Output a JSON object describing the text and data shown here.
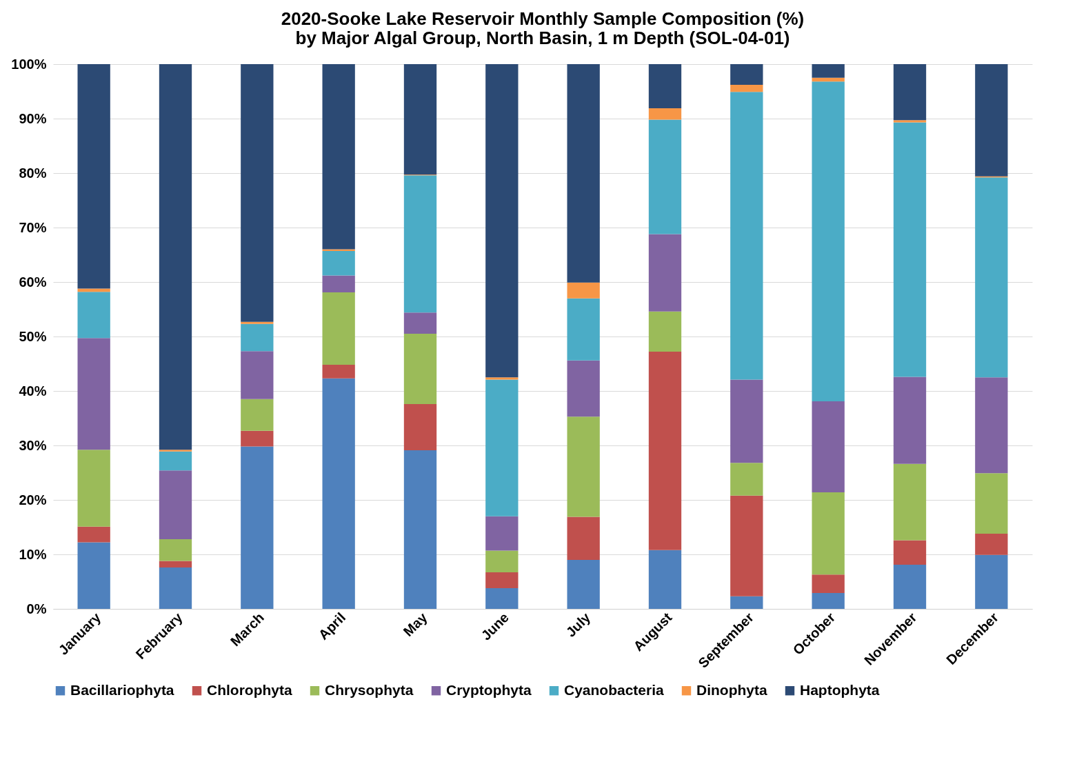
{
  "chart_data": {
    "type": "bar",
    "title": "2020-Sooke Lake Reservoir Monthly Sample Composition (%)\nby Major Algal Group, North Basin, 1 m Depth (SOL-04-01)",
    "categories": [
      "January",
      "February",
      "March",
      "April",
      "May",
      "June",
      "July",
      "August",
      "September",
      "October",
      "November",
      "December"
    ],
    "stacked": true,
    "series": [
      {
        "name": "Bacillariophyta",
        "color": "#4f81bd",
        "values": [
          12.2,
          7.6,
          29.8,
          42.3,
          29.1,
          3.8,
          9.0,
          10.8,
          2.3,
          2.9,
          8.1,
          9.9
        ]
      },
      {
        "name": "Chlorophyta",
        "color": "#c0504d",
        "values": [
          2.9,
          1.2,
          2.9,
          2.5,
          8.5,
          2.9,
          7.9,
          36.4,
          18.5,
          3.4,
          4.5,
          3.9
        ]
      },
      {
        "name": "Chrysophyta",
        "color": "#9bbb59",
        "values": [
          14.1,
          4.0,
          5.8,
          13.3,
          12.9,
          4.0,
          18.4,
          7.4,
          6.0,
          15.1,
          14.0,
          11.1
        ]
      },
      {
        "name": "Cryptophyta",
        "color": "#8064a2",
        "values": [
          20.5,
          12.6,
          8.8,
          3.1,
          3.9,
          6.3,
          10.3,
          14.2,
          15.3,
          16.7,
          16.0,
          17.6
        ]
      },
      {
        "name": "Cyanobacteria",
        "color": "#4bacc6",
        "values": [
          8.5,
          3.5,
          5.0,
          4.5,
          25.2,
          25.1,
          11.4,
          21.0,
          52.8,
          58.7,
          46.7,
          36.7
        ]
      },
      {
        "name": "Dinophyta",
        "color": "#f79646",
        "values": [
          0.6,
          0.3,
          0.4,
          0.3,
          0.1,
          0.4,
          2.9,
          2.1,
          1.3,
          0.7,
          0.4,
          0.2
        ]
      },
      {
        "name": "Haptophyta",
        "color": "#2c4a74",
        "values": [
          41.2,
          70.8,
          47.3,
          34.0,
          20.3,
          57.5,
          40.1,
          8.1,
          3.8,
          2.5,
          10.3,
          20.6
        ]
      }
    ],
    "ylim": [
      0,
      100
    ],
    "yticks": [
      {
        "value": 0,
        "label": "0%"
      },
      {
        "value": 10,
        "label": "10%"
      },
      {
        "value": 20,
        "label": "20%"
      },
      {
        "value": 30,
        "label": "30%"
      },
      {
        "value": 40,
        "label": "40%"
      },
      {
        "value": 50,
        "label": "50%"
      },
      {
        "value": 60,
        "label": "60%"
      },
      {
        "value": 70,
        "label": "70%"
      },
      {
        "value": 80,
        "label": "80%"
      },
      {
        "value": 90,
        "label": "90%"
      },
      {
        "value": 100,
        "label": "100%"
      }
    ],
    "grid": "y",
    "legend": "bottom"
  }
}
